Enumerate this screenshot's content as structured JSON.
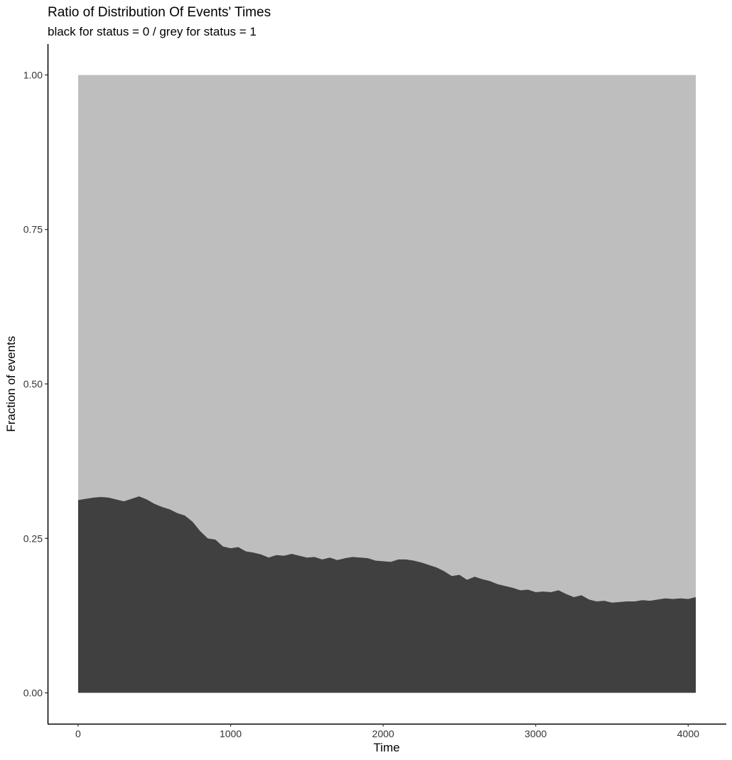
{
  "chart_data": {
    "type": "area",
    "title": "Ratio of Distribution Of Events' Times",
    "subtitle": "black for status = 0 / grey for status = 1",
    "xlabel": "Time",
    "ylabel": "Fraction of events",
    "xlim": [
      -200,
      4250
    ],
    "ylim": [
      -0.05,
      1.05
    ],
    "x_ticks": [
      0,
      1000,
      2000,
      3000,
      4000
    ],
    "x_tick_labels": [
      "0",
      "1000",
      "2000",
      "3000",
      "4000"
    ],
    "y_ticks": [
      0,
      0.25,
      0.5,
      0.75,
      1.0
    ],
    "y_tick_labels": [
      "0.00",
      "0.25",
      "0.50",
      "0.75",
      "1.00"
    ],
    "grid": false,
    "stacked": true,
    "colors": {
      "status_0": "#404040",
      "status_1": "#bebebe"
    },
    "x": [
      0,
      50,
      100,
      150,
      200,
      250,
      300,
      350,
      400,
      450,
      500,
      550,
      600,
      650,
      700,
      750,
      800,
      850,
      900,
      950,
      1000,
      1050,
      1100,
      1150,
      1200,
      1250,
      1300,
      1350,
      1400,
      1450,
      1500,
      1550,
      1600,
      1650,
      1700,
      1750,
      1800,
      1850,
      1900,
      1950,
      2000,
      2050,
      2100,
      2150,
      2200,
      2250,
      2300,
      2350,
      2400,
      2450,
      2500,
      2550,
      2600,
      2650,
      2700,
      2750,
      2800,
      2850,
      2900,
      2950,
      3000,
      3050,
      3100,
      3150,
      3200,
      3250,
      3300,
      3350,
      3400,
      3450,
      3500,
      3550,
      3600,
      3650,
      3700,
      3750,
      3800,
      3850,
      3900,
      3950,
      4000,
      4050
    ],
    "series": [
      {
        "name": "status = 0",
        "values": [
          0.312,
          0.314,
          0.316,
          0.317,
          0.316,
          0.313,
          0.31,
          0.314,
          0.318,
          0.313,
          0.306,
          0.301,
          0.297,
          0.291,
          0.287,
          0.277,
          0.262,
          0.25,
          0.248,
          0.237,
          0.234,
          0.236,
          0.229,
          0.227,
          0.224,
          0.219,
          0.223,
          0.222,
          0.225,
          0.222,
          0.219,
          0.22,
          0.216,
          0.219,
          0.215,
          0.218,
          0.22,
          0.219,
          0.218,
          0.214,
          0.213,
          0.212,
          0.216,
          0.216,
          0.214,
          0.211,
          0.207,
          0.203,
          0.197,
          0.189,
          0.191,
          0.183,
          0.188,
          0.184,
          0.181,
          0.176,
          0.173,
          0.17,
          0.166,
          0.167,
          0.163,
          0.164,
          0.163,
          0.166,
          0.16,
          0.155,
          0.158,
          0.151,
          0.148,
          0.149,
          0.146,
          0.147,
          0.148,
          0.148,
          0.15,
          0.149,
          0.151,
          0.153,
          0.152,
          0.153,
          0.152,
          0.155
        ]
      },
      {
        "name": "status = 1",
        "values": [
          0.688,
          0.686,
          0.684,
          0.683,
          0.684,
          0.687,
          0.69,
          0.686,
          0.682,
          0.687,
          0.694,
          0.699,
          0.703,
          0.709,
          0.713,
          0.723,
          0.738,
          0.75,
          0.752,
          0.763,
          0.766,
          0.764,
          0.771,
          0.773,
          0.776,
          0.781,
          0.777,
          0.778,
          0.775,
          0.778,
          0.781,
          0.78,
          0.784,
          0.781,
          0.785,
          0.782,
          0.78,
          0.781,
          0.782,
          0.786,
          0.787,
          0.788,
          0.784,
          0.784,
          0.786,
          0.789,
          0.793,
          0.797,
          0.803,
          0.811,
          0.809,
          0.817,
          0.812,
          0.816,
          0.819,
          0.824,
          0.827,
          0.83,
          0.834,
          0.833,
          0.837,
          0.836,
          0.837,
          0.834,
          0.84,
          0.845,
          0.842,
          0.849,
          0.852,
          0.851,
          0.854,
          0.853,
          0.852,
          0.852,
          0.85,
          0.851,
          0.849,
          0.847,
          0.848,
          0.847,
          0.848,
          0.845
        ]
      }
    ]
  }
}
